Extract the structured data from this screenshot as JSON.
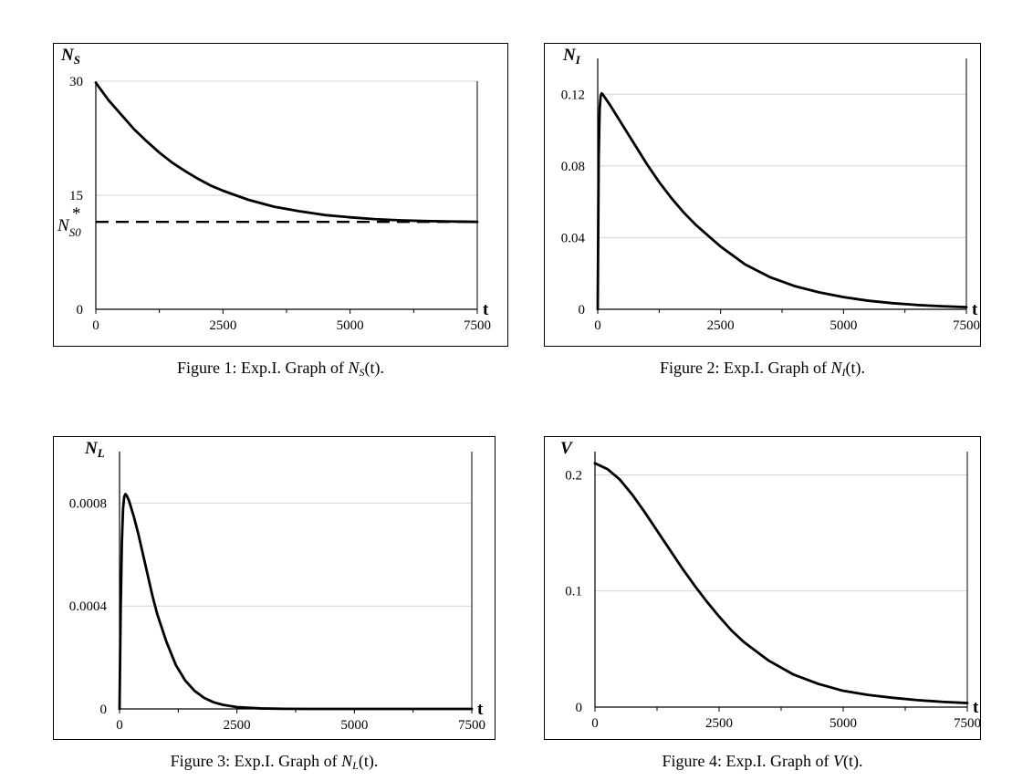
{
  "figures": [
    {
      "caption": {
        "prefix": "Figure 1: Exp.I. Graph of ",
        "main": "N",
        "sub": "S",
        "suffix": "(t)."
      },
      "chart_data": {
        "type": "line",
        "ylabel": {
          "main": "N",
          "sub": "S"
        },
        "xlabel": "t",
        "xlim": [
          0,
          7500
        ],
        "ylim": [
          0,
          30
        ],
        "xticks": [
          0,
          2500,
          5000,
          7500
        ],
        "xtick_labels": [
          "0",
          "2500",
          "5000",
          "7500"
        ],
        "yticks": [
          0,
          15,
          30
        ],
        "ytick_labels": [
          "0",
          "15",
          "30"
        ],
        "grid": true,
        "series": [
          {
            "x": [
              0,
              250,
              500,
              750,
              1000,
              1250,
              1500,
              1750,
              2000,
              2250,
              2500,
              3000,
              3500,
              4000,
              4500,
              5000,
              5500,
              6000,
              6500,
              7000,
              7500
            ],
            "y": [
              29.8,
              27.5,
              25.6,
              23.7,
              22.1,
              20.6,
              19.3,
              18.2,
              17.2,
              16.3,
              15.6,
              14.4,
              13.5,
              12.9,
              12.4,
              12.1,
              11.85,
              11.7,
              11.6,
              11.55,
              11.5
            ],
            "style": "solid"
          },
          {
            "x": [
              0,
              7500
            ],
            "y": [
              11.5,
              11.5
            ],
            "style": "dashed"
          }
        ],
        "annotation": {
          "text": "N",
          "sub": "S0",
          "sup": "*",
          "y": 11.5
        }
      }
    },
    {
      "caption": {
        "prefix": "Figure 2: Exp.I. Graph of ",
        "main": "N",
        "sub": "I",
        "suffix": "(t)."
      },
      "chart_data": {
        "type": "line",
        "ylabel": {
          "main": "N",
          "sub": "I"
        },
        "xlabel": "t",
        "xlim": [
          0,
          7500
        ],
        "ylim": [
          0,
          0.14
        ],
        "xticks": [
          0,
          2500,
          5000,
          7500
        ],
        "xtick_labels": [
          "0",
          "2500",
          "5000",
          "7500"
        ],
        "yticks": [
          0,
          0.04,
          0.08,
          0.12
        ],
        "ytick_labels": [
          "0",
          "0.04",
          "0.08",
          "0.12"
        ],
        "grid": true,
        "series": [
          {
            "x": [
              0,
              20,
              40,
              60,
              80,
              100,
              150,
              250,
              500,
              750,
              1000,
              1250,
              1500,
              1750,
              2000,
              2500,
              3000,
              3500,
              4000,
              4500,
              5000,
              5500,
              6000,
              6500,
              7000,
              7500
            ],
            "y": [
              0,
              0.085,
              0.112,
              0.119,
              0.1205,
              0.12,
              0.118,
              0.114,
              0.103,
              0.092,
              0.081,
              0.071,
              0.062,
              0.054,
              0.047,
              0.035,
              0.025,
              0.018,
              0.013,
              0.0095,
              0.0068,
              0.0048,
              0.0034,
              0.0024,
              0.0017,
              0.0012
            ],
            "style": "solid"
          }
        ]
      }
    },
    {
      "caption": {
        "prefix": "Figure 3: Exp.I. Graph of ",
        "main": "N",
        "sub": "L",
        "suffix": "(t)."
      },
      "chart_data": {
        "type": "line",
        "ylabel": {
          "main": "N",
          "sub": "L"
        },
        "xlabel": "t",
        "xlim": [
          0,
          7500
        ],
        "ylim": [
          0,
          0.001
        ],
        "xticks": [
          0,
          2500,
          5000,
          7500
        ],
        "xtick_labels": [
          "0",
          "2500",
          "5000",
          "7500"
        ],
        "yticks": [
          0,
          0.0004,
          0.0008
        ],
        "ytick_labels": [
          "0",
          "0.0004",
          "0.0008"
        ],
        "grid": true,
        "series": [
          {
            "x": [
              0,
              25,
              50,
              75,
              100,
              125,
              150,
              200,
              300,
              400,
              500,
              600,
              700,
              800,
              1000,
              1200,
              1400,
              1600,
              1800,
              2000,
              2200,
              2500,
              3000,
              3500,
              4000,
              5000,
              6000,
              7500
            ],
            "y": [
              0,
              0.0004,
              0.00065,
              0.00078,
              0.000825,
              0.000835,
              0.00083,
              0.00081,
              0.00075,
              0.00068,
              0.0006,
              0.00052,
              0.00044,
              0.00037,
              0.00026,
              0.00017,
              0.00011,
              7e-05,
              4.3e-05,
              2.6e-05,
              1.6e-05,
              7e-06,
              2e-06,
              5e-07,
              0,
              0,
              0,
              0
            ],
            "style": "solid"
          }
        ]
      }
    },
    {
      "caption": {
        "prefix": "Figure 4: Exp.I. Graph of ",
        "main": "V",
        "sub": "",
        "suffix": "(t)."
      },
      "chart_data": {
        "type": "line",
        "ylabel": {
          "main": "V",
          "sub": ""
        },
        "xlabel": "t",
        "xlim": [
          0,
          7500
        ],
        "ylim": [
          0,
          0.22
        ],
        "xticks": [
          0,
          2500,
          5000,
          7500
        ],
        "xtick_labels": [
          "0",
          "2500",
          "5000",
          "7500"
        ],
        "yticks": [
          0,
          0.1,
          0.2
        ],
        "ytick_labels": [
          "0",
          "0.1",
          "0.2"
        ],
        "grid": true,
        "series": [
          {
            "x": [
              0,
              250,
              500,
              750,
              1000,
              1250,
              1500,
              1750,
              2000,
              2250,
              2500,
              2750,
              3000,
              3500,
              4000,
              4500,
              5000,
              5500,
              6000,
              6500,
              7000,
              7500
            ],
            "y": [
              0.21,
              0.205,
              0.196,
              0.183,
              0.168,
              0.152,
              0.136,
              0.12,
              0.105,
              0.091,
              0.078,
              0.066,
              0.056,
              0.04,
              0.028,
              0.02,
              0.014,
              0.0105,
              0.008,
              0.006,
              0.0045,
              0.0035
            ],
            "style": "solid"
          }
        ]
      }
    }
  ]
}
